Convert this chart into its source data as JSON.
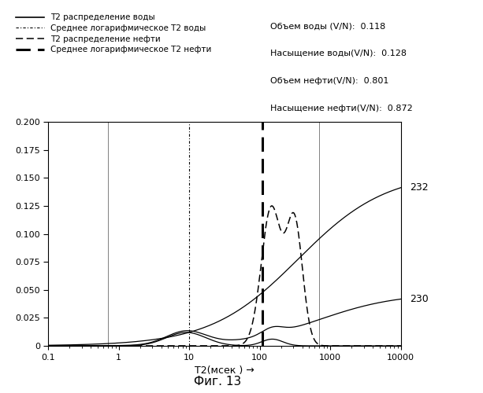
{
  "title_fig": "Фиг. 13",
  "xlabel": "T2(мсек ) →",
  "ylabel_ticks": [
    0,
    0.025,
    0.05,
    0.075,
    0.1,
    0.125,
    0.15,
    0.175,
    0.2
  ],
  "xlim_log": [
    0.1,
    10000
  ],
  "ylim": [
    0,
    0.2
  ],
  "vline_gray1": 0.7,
  "vline_gray2": 700.0,
  "vline_water_mean": 10.0,
  "vline_oil_mean": 110.0,
  "legend_entries": [
    "T2 распределение воды",
    "Среднее логарифмическое T2 воды",
    "T2 распределение нефти",
    "Среднее логарифмическое T2 нефти"
  ],
  "annotation_232": "232",
  "annotation_230": "230",
  "info_lines": [
    [
      "Объем воды (",
      "V/N",
      "):  0.118"
    ],
    [
      "Насыщение воды(",
      "V/N",
      "):  0.128"
    ],
    [
      "Объем нефти(",
      "V/N",
      "):  0.801"
    ],
    [
      "Насыщение нефти(",
      "V/N",
      "):  0.872"
    ]
  ]
}
